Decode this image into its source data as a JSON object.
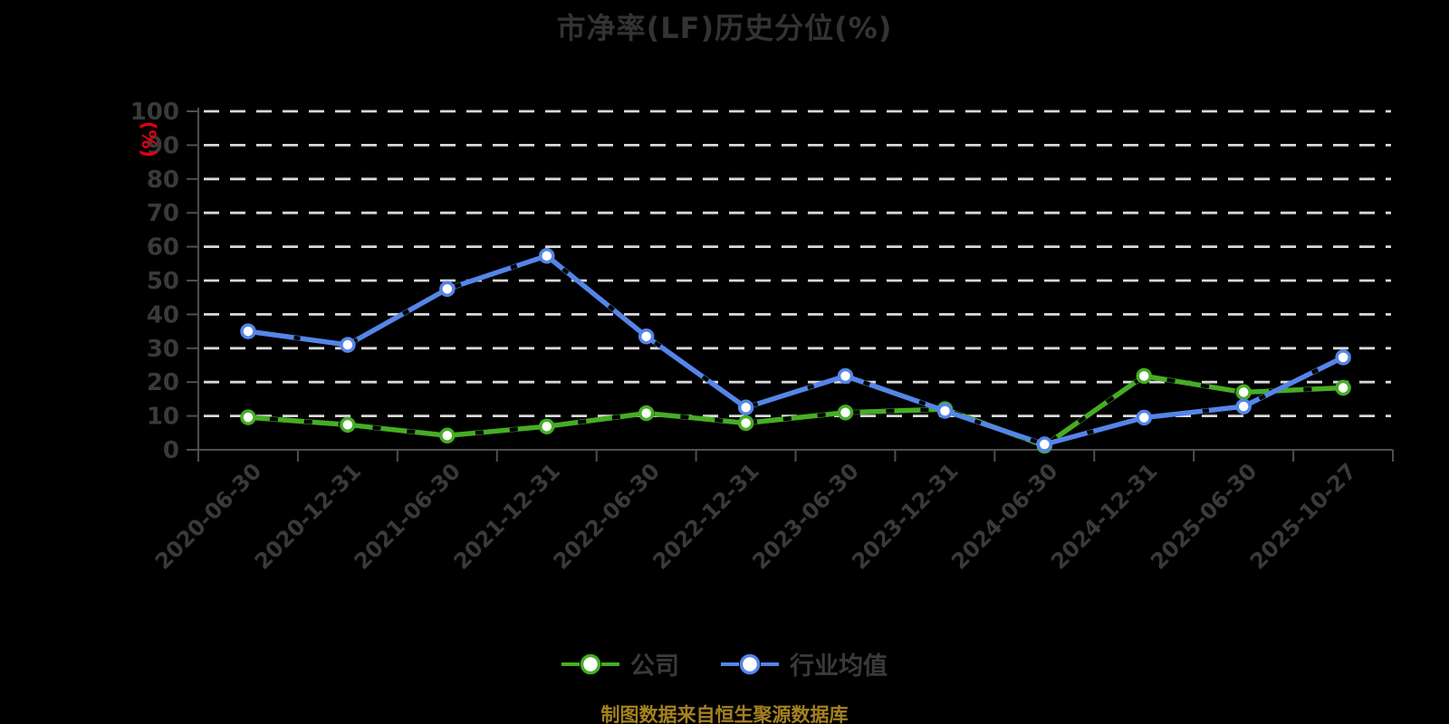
{
  "title": "市净率(LF)历史分位(%)",
  "y_axis_unit_label": "(%)",
  "footer_note": "制图数据来自恒生聚源数据库",
  "colors": {
    "background": "#000000",
    "title_text": "#333333",
    "axis_line": "#4f4f4f",
    "axis_label_text": "#3a3a3a",
    "gridline": "#d9d9d9",
    "unit_label_red": "#e60012",
    "company_green": "#46ad24",
    "industry_blue": "#5585e8",
    "footer_gold": "#a5811f",
    "marker_fill": "#ffffff"
  },
  "legend": {
    "items": [
      {
        "label": "公司"
      },
      {
        "label": "行业均值"
      }
    ]
  },
  "chart_data": {
    "type": "line",
    "title": "市净率(LF)历史分位(%)",
    "xlabel": "",
    "ylabel": "(%)",
    "ylim": [
      0,
      100
    ],
    "y_ticks": [
      0,
      10,
      20,
      30,
      40,
      50,
      60,
      70,
      80,
      90,
      100
    ],
    "grid": "horizontal-dashed",
    "legend_position": "bottom",
    "categories": [
      "2020-06-30",
      "2020-12-31",
      "2021-06-30",
      "2021-12-31",
      "2022-06-30",
      "2022-12-31",
      "2023-06-30",
      "2023-12-31",
      "2024-06-30",
      "2024-12-31",
      "2025-06-30",
      "2025-10-27"
    ],
    "series": [
      {
        "name": "公司",
        "color": "#46ad24",
        "values": [
          9.6,
          7.4,
          4.2,
          6.9,
          10.8,
          7.9,
          11.0,
          12.0,
          1.2,
          21.8,
          17.0,
          18.3
        ]
      },
      {
        "name": "行业均值",
        "color": "#5585e8",
        "values": [
          35.0,
          31.0,
          47.5,
          57.3,
          33.5,
          12.5,
          21.8,
          11.5,
          1.6,
          9.5,
          12.8,
          27.3
        ]
      }
    ]
  }
}
